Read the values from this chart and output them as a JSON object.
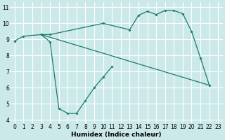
{
  "bg_color": "#cce9e9",
  "grid_color": "#b0d8d8",
  "line_color": "#1a7a6e",
  "line1": {
    "x": [
      0,
      1,
      3,
      4,
      10,
      13,
      14,
      15,
      16,
      17,
      18,
      19,
      20,
      21,
      22
    ],
    "y": [
      8.9,
      9.2,
      9.3,
      9.3,
      10.0,
      9.6,
      10.5,
      10.75,
      10.55,
      10.8,
      10.8,
      10.6,
      9.5,
      7.85,
      6.15
    ]
  },
  "line2": {
    "x": [
      3,
      4,
      5,
      6,
      7,
      8,
      9,
      10,
      11
    ],
    "y": [
      9.3,
      8.85,
      4.7,
      4.4,
      4.4,
      5.2,
      6.0,
      6.65,
      7.3
    ]
  },
  "line3": {
    "x": [
      3,
      22
    ],
    "y": [
      9.3,
      6.15
    ]
  },
  "xlabel": "Humidex (Indice chaleur)",
  "xlim": [
    -0.5,
    23.5
  ],
  "ylim": [
    3.8,
    11.3
  ],
  "xticks": [
    0,
    1,
    2,
    3,
    4,
    5,
    6,
    7,
    8,
    9,
    10,
    11,
    12,
    13,
    14,
    15,
    16,
    17,
    18,
    19,
    20,
    21,
    22,
    23
  ],
  "yticks": [
    4,
    5,
    6,
    7,
    8,
    9,
    10,
    11
  ],
  "axis_fontsize": 6.5,
  "tick_fontsize": 5.5
}
